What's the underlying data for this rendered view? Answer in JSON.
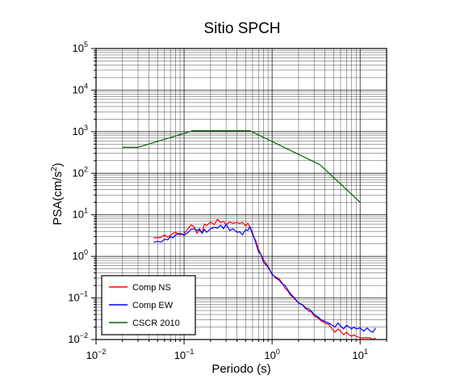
{
  "chart_data": {
    "type": "line",
    "title": "Sitio SPCH",
    "xlabel": "Periodo (s)",
    "ylabel_base": "PSA(cm/s",
    "ylabel_sup": "2",
    "ylabel_tail": ")",
    "x_scale": "log",
    "y_scale": "log",
    "xlim": [
      0.01,
      20
    ],
    "ylim": [
      0.01,
      100000
    ],
    "grid": true,
    "legend_position": "bottom-left",
    "x_ticks": [
      {
        "base": "10",
        "exp": "−2",
        "value": 0.01
      },
      {
        "base": "10",
        "exp": "−1",
        "value": 0.1
      },
      {
        "base": "10",
        "exp": "0",
        "value": 1
      },
      {
        "base": "10",
        "exp": "1",
        "value": 10
      }
    ],
    "y_ticks": [
      {
        "base": "10",
        "exp": "−2",
        "value": 0.01
      },
      {
        "base": "10",
        "exp": "−1",
        "value": 0.1
      },
      {
        "base": "10",
        "exp": "0",
        "value": 1
      },
      {
        "base": "10",
        "exp": "1",
        "value": 10
      },
      {
        "base": "10",
        "exp": "2",
        "value": 100
      },
      {
        "base": "10",
        "exp": "3",
        "value": 1000
      },
      {
        "base": "10",
        "exp": "4",
        "value": 10000
      },
      {
        "base": "10",
        "exp": "5",
        "value": 100000
      }
    ],
    "series": [
      {
        "name": "Comp NS",
        "color": "#ff0000",
        "points": [
          [
            0.045,
            2.8
          ],
          [
            0.05,
            2.8
          ],
          [
            0.055,
            2.9
          ],
          [
            0.06,
            3.3
          ],
          [
            0.065,
            2.9
          ],
          [
            0.07,
            3.2
          ],
          [
            0.075,
            3.6
          ],
          [
            0.08,
            3.8
          ],
          [
            0.09,
            3.3
          ],
          [
            0.1,
            3.5
          ],
          [
            0.11,
            4.5
          ],
          [
            0.12,
            5.7
          ],
          [
            0.13,
            5.2
          ],
          [
            0.14,
            3.6
          ],
          [
            0.15,
            4.3
          ],
          [
            0.16,
            3.6
          ],
          [
            0.17,
            6.0
          ],
          [
            0.18,
            5.5
          ],
          [
            0.2,
            6.7
          ],
          [
            0.22,
            5.8
          ],
          [
            0.24,
            7.8
          ],
          [
            0.26,
            6.5
          ],
          [
            0.28,
            7.0
          ],
          [
            0.3,
            5.8
          ],
          [
            0.33,
            6.7
          ],
          [
            0.36,
            6.3
          ],
          [
            0.4,
            6.5
          ],
          [
            0.43,
            6.2
          ],
          [
            0.46,
            6.6
          ],
          [
            0.5,
            5.4
          ],
          [
            0.53,
            6.3
          ],
          [
            0.56,
            5.0
          ],
          [
            0.6,
            3.3
          ],
          [
            0.65,
            2.4
          ],
          [
            0.7,
            1.5
          ],
          [
            0.75,
            1.1
          ],
          [
            0.8,
            0.82
          ],
          [
            0.9,
            0.58
          ],
          [
            1.0,
            0.36
          ],
          [
            1.1,
            0.32
          ],
          [
            1.2,
            0.29
          ],
          [
            1.3,
            0.23
          ],
          [
            1.4,
            0.17
          ],
          [
            1.5,
            0.15
          ],
          [
            1.6,
            0.12
          ],
          [
            1.8,
            0.095
          ],
          [
            2.0,
            0.075
          ],
          [
            2.2,
            0.068
          ],
          [
            2.4,
            0.06
          ],
          [
            2.6,
            0.048
          ],
          [
            2.8,
            0.046
          ],
          [
            3.0,
            0.037
          ],
          [
            3.3,
            0.033
          ],
          [
            3.6,
            0.028
          ],
          [
            4.0,
            0.025
          ],
          [
            4.4,
            0.023
          ],
          [
            4.8,
            0.018
          ],
          [
            5.2,
            0.015
          ],
          [
            5.6,
            0.018
          ],
          [
            6.0,
            0.016
          ],
          [
            6.5,
            0.013
          ],
          [
            7.0,
            0.015
          ],
          [
            7.5,
            0.013
          ],
          [
            8.0,
            0.012
          ],
          [
            8.5,
            0.013
          ],
          [
            9.0,
            0.012
          ],
          [
            10.0,
            0.011
          ],
          [
            11.0,
            0.011
          ],
          [
            12.0,
            0.011
          ],
          [
            13.0,
            0.011
          ],
          [
            14.0,
            0.01
          ],
          [
            15.0,
            0.011
          ]
        ]
      },
      {
        "name": "Comp EW",
        "color": "#0000ff",
        "points": [
          [
            0.045,
            2.2
          ],
          [
            0.05,
            2.3
          ],
          [
            0.055,
            2.2
          ],
          [
            0.06,
            2.6
          ],
          [
            0.065,
            2.5
          ],
          [
            0.07,
            3.0
          ],
          [
            0.075,
            2.8
          ],
          [
            0.08,
            3.3
          ],
          [
            0.09,
            3.6
          ],
          [
            0.1,
            3.2
          ],
          [
            0.11,
            3.7
          ],
          [
            0.12,
            4.5
          ],
          [
            0.13,
            4.6
          ],
          [
            0.14,
            4.2
          ],
          [
            0.15,
            4.6
          ],
          [
            0.16,
            3.6
          ],
          [
            0.17,
            4.5
          ],
          [
            0.18,
            3.8
          ],
          [
            0.2,
            4.6
          ],
          [
            0.22,
            5.0
          ],
          [
            0.24,
            4.8
          ],
          [
            0.26,
            5.6
          ],
          [
            0.28,
            4.6
          ],
          [
            0.3,
            6.0
          ],
          [
            0.33,
            4.2
          ],
          [
            0.36,
            4.6
          ],
          [
            0.4,
            3.8
          ],
          [
            0.43,
            3.9
          ],
          [
            0.46,
            3.3
          ],
          [
            0.5,
            4.4
          ],
          [
            0.53,
            4.2
          ],
          [
            0.56,
            5.2
          ],
          [
            0.6,
            3.6
          ],
          [
            0.65,
            2.2
          ],
          [
            0.7,
            1.3
          ],
          [
            0.75,
            1.1
          ],
          [
            0.8,
            0.72
          ],
          [
            0.9,
            0.55
          ],
          [
            1.0,
            0.38
          ],
          [
            1.1,
            0.3
          ],
          [
            1.2,
            0.27
          ],
          [
            1.3,
            0.22
          ],
          [
            1.4,
            0.2
          ],
          [
            1.5,
            0.16
          ],
          [
            1.6,
            0.13
          ],
          [
            1.8,
            0.1
          ],
          [
            2.0,
            0.075
          ],
          [
            2.2,
            0.07
          ],
          [
            2.4,
            0.055
          ],
          [
            2.6,
            0.055
          ],
          [
            2.8,
            0.048
          ],
          [
            3.0,
            0.04
          ],
          [
            3.3,
            0.035
          ],
          [
            3.6,
            0.03
          ],
          [
            4.0,
            0.027
          ],
          [
            4.4,
            0.025
          ],
          [
            4.8,
            0.022
          ],
          [
            5.2,
            0.02
          ],
          [
            5.6,
            0.025
          ],
          [
            6.0,
            0.021
          ],
          [
            6.5,
            0.018
          ],
          [
            7.0,
            0.022
          ],
          [
            7.5,
            0.02
          ],
          [
            8.0,
            0.018
          ],
          [
            8.5,
            0.02
          ],
          [
            9.0,
            0.018
          ],
          [
            10.0,
            0.019
          ],
          [
            11.0,
            0.016
          ],
          [
            12.0,
            0.019
          ],
          [
            13.0,
            0.016
          ],
          [
            14.0,
            0.015
          ],
          [
            15.0,
            0.019
          ]
        ]
      },
      {
        "name": "CSCR 2010",
        "color": "#006400",
        "points": [
          [
            0.02,
            420
          ],
          [
            0.03,
            420
          ],
          [
            0.125,
            1050
          ],
          [
            0.56,
            1050
          ],
          [
            3.5,
            160
          ],
          [
            10.0,
            20
          ]
        ]
      }
    ]
  }
}
